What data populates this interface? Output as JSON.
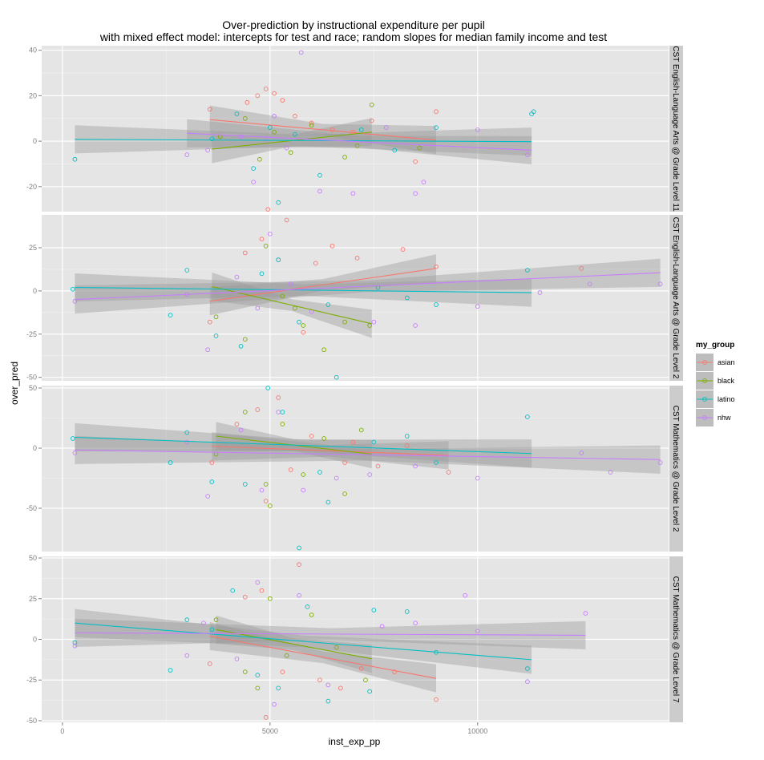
{
  "title_line1": "Over-prediction by instructional expenditure per pupil",
  "title_line2": "with mixed effect model: intercepts for test and race; random slopes for median family income and test",
  "xlabel": "inst_exp_pp",
  "ylabel": "over_pred",
  "legend": {
    "title": "my_group",
    "entries": [
      {
        "name": "asian",
        "color": "#F8766D"
      },
      {
        "name": "black",
        "color": "#7CAE00"
      },
      {
        "name": "latino",
        "color": "#00BFC4"
      },
      {
        "name": "nhw",
        "color": "#C77CFF"
      }
    ]
  },
  "chart_data": {
    "type": "scatter",
    "title": "Over-prediction by instructional expenditure per pupil\nwith mixed effect model: intercepts for test and race; random slopes for median family income and test",
    "xlabel": "inst_exp_pp",
    "ylabel": "over_pred",
    "xlim": [
      -500,
      14600
    ],
    "x_ticks": [
      0,
      5000,
      10000
    ],
    "x_tick_labels": [
      "0",
      "5000",
      "10000"
    ],
    "grid": true,
    "legend_position": "right",
    "facet_layout": "rows",
    "groups": [
      "asian",
      "black",
      "latino",
      "nhw"
    ],
    "panels": [
      {
        "strip": "CST English-Language Arts @ Grade Level 11",
        "ylim": [
          -31,
          42
        ],
        "y_ticks": [
          -20,
          0,
          20,
          40
        ],
        "y_tick_labels": [
          "-20",
          "0",
          "20",
          "40"
        ],
        "points": {
          "asian": [
            [
              3550,
              14
            ],
            [
              4450,
              17
            ],
            [
              4700,
              20
            ],
            [
              4900,
              23
            ],
            [
              5100,
              21
            ],
            [
              5300,
              18
            ],
            [
              5600,
              11
            ],
            [
              6000,
              8
            ],
            [
              6500,
              5
            ],
            [
              7000,
              4
            ],
            [
              7450,
              9
            ],
            [
              8500,
              -9
            ],
            [
              9000,
              13
            ],
            [
              4950,
              -30
            ]
          ],
          "black": [
            [
              3800,
              2
            ],
            [
              4400,
              10
            ],
            [
              4750,
              -8
            ],
            [
              5100,
              4
            ],
            [
              5500,
              -5
            ],
            [
              6000,
              7
            ],
            [
              6800,
              -7
            ],
            [
              7450,
              16
            ],
            [
              8600,
              -3
            ],
            [
              7100,
              -2
            ]
          ],
          "latino": [
            [
              300,
              -8
            ],
            [
              3600,
              1
            ],
            [
              4200,
              12
            ],
            [
              4600,
              -12
            ],
            [
              5000,
              6
            ],
            [
              5200,
              -27
            ],
            [
              5600,
              3
            ],
            [
              6200,
              -15
            ],
            [
              7200,
              5
            ],
            [
              8000,
              -4
            ],
            [
              9000,
              6
            ],
            [
              11300,
              12
            ],
            [
              11350,
              13
            ]
          ],
          "nhw": [
            [
              3000,
              -6
            ],
            [
              3500,
              -4
            ],
            [
              4300,
              2
            ],
            [
              4600,
              -18
            ],
            [
              4900,
              0
            ],
            [
              5100,
              11
            ],
            [
              5400,
              -3
            ],
            [
              5750,
              39
            ],
            [
              6200,
              -22
            ],
            [
              7000,
              -23
            ],
            [
              7800,
              6
            ],
            [
              8500,
              -23
            ],
            [
              8700,
              -18
            ],
            [
              10000,
              5
            ],
            [
              11200,
              -6
            ]
          ]
        },
        "fits": {
          "asian": {
            "x": [
              3550,
              9000
            ],
            "y": [
              9.5,
              0.5
            ]
          },
          "black": {
            "x": [
              3600,
              7450
            ],
            "y": [
              -3.5,
              4
            ]
          },
          "latino": {
            "x": [
              300,
              11300
            ],
            "y": [
              0.8,
              -0.2
            ]
          },
          "nhw": {
            "x": [
              3000,
              11300
            ],
            "y": [
              3.5,
              -4
            ]
          }
        }
      },
      {
        "strip": "CST English-Language Arts @ Grade Level 2",
        "ylim": [
          -52,
          44
        ],
        "y_ticks": [
          -50,
          -25,
          0,
          25
        ],
        "y_tick_labels": [
          "-50",
          "-25",
          "0",
          "25"
        ],
        "points": {
          "asian": [
            [
              3550,
              -18
            ],
            [
              4400,
              22
            ],
            [
              4800,
              30
            ],
            [
              5200,
              18
            ],
            [
              5400,
              41
            ],
            [
              5800,
              -24
            ],
            [
              6100,
              16
            ],
            [
              6500,
              26
            ],
            [
              7100,
              19
            ],
            [
              8200,
              24
            ],
            [
              9000,
              14
            ],
            [
              12500,
              13
            ]
          ],
          "black": [
            [
              3700,
              -15
            ],
            [
              4400,
              -28
            ],
            [
              4900,
              26
            ],
            [
              5300,
              -3
            ],
            [
              5800,
              -20
            ],
            [
              6300,
              -34
            ],
            [
              6800,
              -18
            ],
            [
              7400,
              -20
            ],
            [
              5600,
              -10
            ]
          ],
          "latino": [
            [
              250,
              1
            ],
            [
              2600,
              -14
            ],
            [
              3000,
              12
            ],
            [
              3700,
              -26
            ],
            [
              4300,
              -32
            ],
            [
              4800,
              10
            ],
            [
              5200,
              18
            ],
            [
              5700,
              -18
            ],
            [
              6400,
              -8
            ],
            [
              7600,
              2
            ],
            [
              8300,
              -4
            ],
            [
              9000,
              -8
            ],
            [
              11200,
              12
            ],
            [
              6600,
              -50
            ]
          ],
          "nhw": [
            [
              300,
              -6
            ],
            [
              3000,
              -2
            ],
            [
              3500,
              -34
            ],
            [
              4200,
              8
            ],
            [
              4700,
              -10
            ],
            [
              5000,
              33
            ],
            [
              5500,
              4
            ],
            [
              6000,
              -12
            ],
            [
              7500,
              -18
            ],
            [
              8500,
              -20
            ],
            [
              10000,
              -9
            ],
            [
              12700,
              4
            ],
            [
              14400,
              4
            ],
            [
              11500,
              -1
            ]
          ]
        },
        "fits": {
          "asian": {
            "x": [
              3550,
              9000
            ],
            "y": [
              -6,
              13
            ]
          },
          "black": {
            "x": [
              3600,
              7450
            ],
            "y": [
              2.5,
              -19
            ]
          },
          "latino": {
            "x": [
              300,
              11300
            ],
            "y": [
              2,
              -1
            ]
          },
          "nhw": {
            "x": [
              300,
              14400
            ],
            "y": [
              -5,
              10.5
            ]
          }
        }
      },
      {
        "strip": "CST Mathematics @ Grade Level 2",
        "ylim": [
          -86,
          52
        ],
        "y_ticks": [
          -50,
          0,
          50
        ],
        "y_tick_labels": [
          "-50",
          "0",
          "50"
        ],
        "points": {
          "asian": [
            [
              3600,
              -12
            ],
            [
              4200,
              20
            ],
            [
              4700,
              32
            ],
            [
              4900,
              -44
            ],
            [
              5200,
              42
            ],
            [
              5500,
              -18
            ],
            [
              6000,
              10
            ],
            [
              6800,
              -12
            ],
            [
              7600,
              -15
            ],
            [
              8300,
              2
            ],
            [
              9300,
              -20
            ],
            [
              7000,
              5
            ]
          ],
          "black": [
            [
              3700,
              -5
            ],
            [
              4400,
              30
            ],
            [
              4900,
              -30
            ],
            [
              5300,
              20
            ],
            [
              5800,
              -22
            ],
            [
              6300,
              8
            ],
            [
              6800,
              -38
            ],
            [
              7200,
              15
            ],
            [
              5000,
              -48
            ]
          ],
          "latino": [
            [
              250,
              8
            ],
            [
              2600,
              -12
            ],
            [
              3000,
              13
            ],
            [
              3600,
              -28
            ],
            [
              4400,
              -30
            ],
            [
              4950,
              50
            ],
            [
              5300,
              30
            ],
            [
              5700,
              -83
            ],
            [
              6400,
              -45
            ],
            [
              7500,
              5
            ],
            [
              8300,
              10
            ],
            [
              9000,
              -12
            ],
            [
              11200,
              26
            ],
            [
              6200,
              -20
            ]
          ],
          "nhw": [
            [
              300,
              -4
            ],
            [
              3000,
              5
            ],
            [
              3500,
              -40
            ],
            [
              4300,
              15
            ],
            [
              4800,
              -35
            ],
            [
              5200,
              30
            ],
            [
              5800,
              -35
            ],
            [
              6600,
              -25
            ],
            [
              7400,
              -22
            ],
            [
              8500,
              -15
            ],
            [
              10000,
              -25
            ],
            [
              12500,
              -4
            ],
            [
              13200,
              -20
            ],
            [
              14400,
              -12
            ]
          ]
        },
        "fits": {
          "asian": {
            "x": [
              3600,
              9300
            ],
            "y": [
              1.5,
              -6
            ]
          },
          "black": {
            "x": [
              3700,
              7450
            ],
            "y": [
              10,
              -5
            ]
          },
          "latino": {
            "x": [
              300,
              11300
            ],
            "y": [
              9,
              -4.5
            ]
          },
          "nhw": {
            "x": [
              300,
              14400
            ],
            "y": [
              -1.5,
              -9.5
            ]
          }
        }
      },
      {
        "strip": "CST Mathematics @ Grade Level 7",
        "ylim": [
          -51,
          51
        ],
        "y_ticks": [
          -50,
          -25,
          0,
          25,
          50
        ],
        "y_tick_labels": [
          "-50",
          "-25",
          "0",
          "25",
          "50"
        ],
        "points": {
          "asian": [
            [
              3550,
              -15
            ],
            [
              4400,
              26
            ],
            [
              4800,
              30
            ],
            [
              5300,
              -20
            ],
            [
              5700,
              46
            ],
            [
              6200,
              -25
            ],
            [
              6700,
              -30
            ],
            [
              7200,
              -18
            ],
            [
              8000,
              -20
            ],
            [
              9000,
              -37
            ],
            [
              4900,
              -48
            ]
          ],
          "black": [
            [
              3700,
              12
            ],
            [
              4400,
              -20
            ],
            [
              5000,
              25
            ],
            [
              5400,
              -10
            ],
            [
              6000,
              15
            ],
            [
              6600,
              -5
            ],
            [
              7300,
              -25
            ],
            [
              4700,
              -30
            ]
          ],
          "latino": [
            [
              300,
              -2
            ],
            [
              2600,
              -19
            ],
            [
              3000,
              12
            ],
            [
              3600,
              6
            ],
            [
              4100,
              30
            ],
            [
              4700,
              -22
            ],
            [
              5200,
              -30
            ],
            [
              5900,
              20
            ],
            [
              6400,
              -38
            ],
            [
              7500,
              18
            ],
            [
              8300,
              17
            ],
            [
              9000,
              -8
            ],
            [
              11200,
              -18
            ],
            [
              7400,
              -32
            ]
          ],
          "nhw": [
            [
              300,
              -4
            ],
            [
              3000,
              -10
            ],
            [
              3400,
              10
            ],
            [
              4200,
              -12
            ],
            [
              4700,
              35
            ],
            [
              5100,
              -40
            ],
            [
              5700,
              27
            ],
            [
              6400,
              -28
            ],
            [
              7700,
              8
            ],
            [
              8500,
              10
            ],
            [
              9700,
              27
            ],
            [
              10000,
              5
            ],
            [
              11200,
              -26
            ],
            [
              12600,
              16
            ]
          ]
        },
        "fits": {
          "asian": {
            "x": [
              3550,
              9000
            ],
            "y": [
              2,
              -24
            ]
          },
          "black": {
            "x": [
              3700,
              7450
            ],
            "y": [
              6,
              -12
            ]
          },
          "latino": {
            "x": [
              300,
              11300
            ],
            "y": [
              10,
              -12.5
            ]
          },
          "nhw": {
            "x": [
              300,
              12600
            ],
            "y": [
              4,
              2.5
            ]
          }
        }
      }
    ]
  }
}
